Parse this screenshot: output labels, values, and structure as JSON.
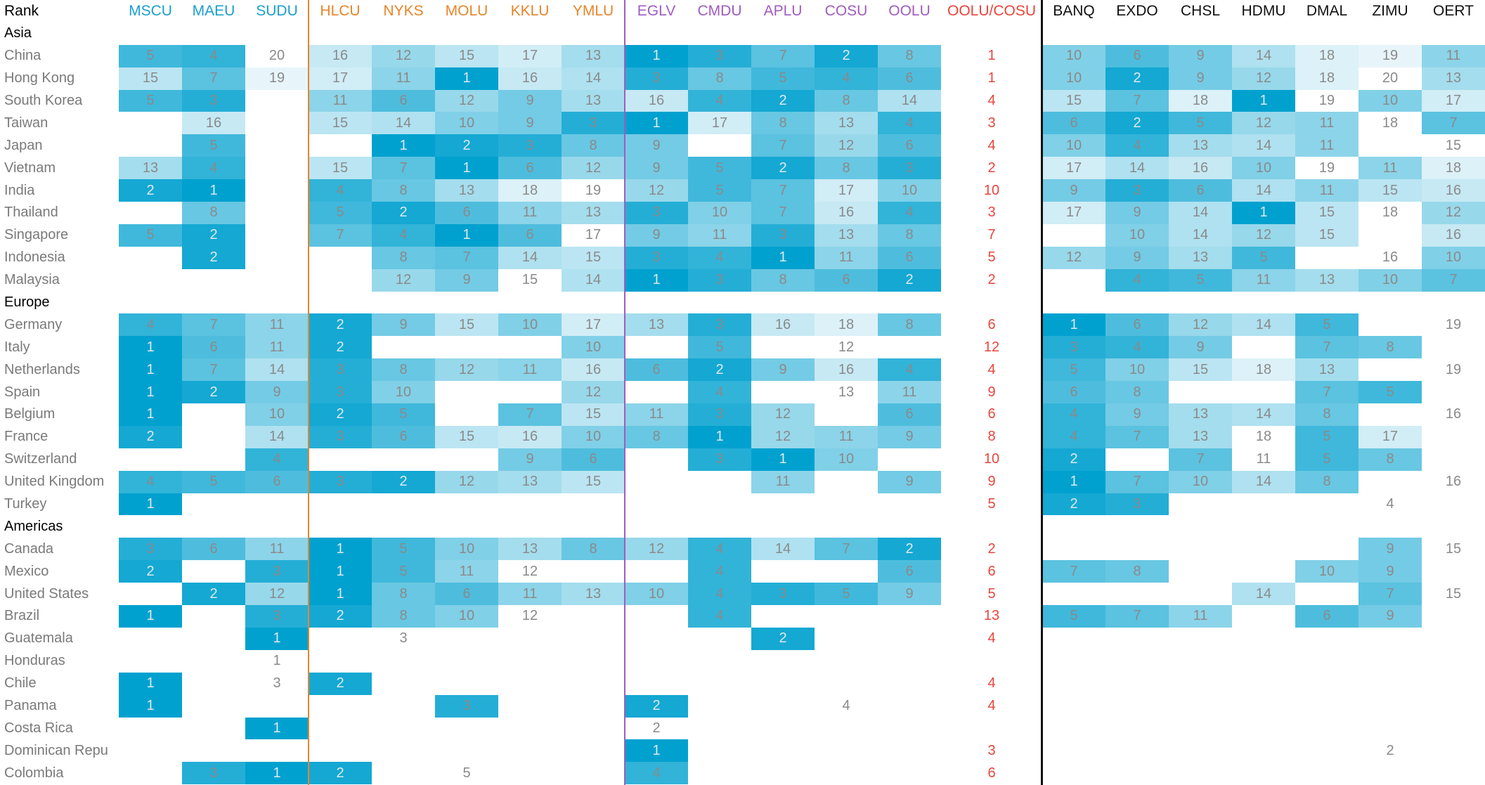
{
  "colors": {
    "blue": "#1a9fd0",
    "orange": "#e8852a",
    "purple": "#a05cc0",
    "red": "#e8453c",
    "black": "#111111",
    "heat_high": "#00a1cf",
    "heat_low": "#f2f9fc"
  },
  "chart_data": {
    "type": "heatmap",
    "title": "",
    "corner_label": "Rank",
    "columns": [
      {
        "code": "MSCU",
        "group": "blue"
      },
      {
        "code": "MAEU",
        "group": "blue"
      },
      {
        "code": "SUDU",
        "group": "blue"
      },
      {
        "code": "HLCU",
        "group": "orange"
      },
      {
        "code": "NYKS",
        "group": "orange"
      },
      {
        "code": "MOLU",
        "group": "orange"
      },
      {
        "code": "KKLU",
        "group": "orange"
      },
      {
        "code": "YMLU",
        "group": "orange"
      },
      {
        "code": "EGLV",
        "group": "purple"
      },
      {
        "code": "CMDU",
        "group": "purple"
      },
      {
        "code": "APLU",
        "group": "purple"
      },
      {
        "code": "COSU",
        "group": "purple"
      },
      {
        "code": "OOLU",
        "group": "purple"
      },
      {
        "code": "OOLU/COSU",
        "group": "red"
      },
      {
        "code": "BANQ",
        "group": "black"
      },
      {
        "code": "EXDO",
        "group": "black"
      },
      {
        "code": "CHSL",
        "group": "black"
      },
      {
        "code": "HDMU",
        "group": "black"
      },
      {
        "code": "DMAL",
        "group": "black"
      },
      {
        "code": "ZIMU",
        "group": "black"
      },
      {
        "code": "OERT",
        "group": "black"
      }
    ],
    "sections": [
      {
        "name": "Asia",
        "rows": [
          {
            "label": "China",
            "values": [
              5,
              4,
              "20",
              16,
              12,
              15,
              17,
              13,
              1,
              3,
              7,
              2,
              8,
              1,
              10,
              6,
              9,
              14,
              18,
              19,
              11
            ]
          },
          {
            "label": "Hong Kong",
            "values": [
              15,
              7,
              19,
              17,
              11,
              1,
              16,
              14,
              3,
              8,
              5,
              4,
              6,
              1,
              10,
              2,
              9,
              12,
              18,
              "20",
              13
            ]
          },
          {
            "label": "South Korea",
            "values": [
              5,
              3,
              null,
              11,
              6,
              12,
              9,
              13,
              16,
              4,
              2,
              8,
              14,
              4,
              15,
              7,
              18,
              1,
              "19",
              10,
              17
            ]
          },
          {
            "label": "Taiwan",
            "values": [
              null,
              16,
              null,
              15,
              14,
              10,
              9,
              3,
              1,
              17,
              8,
              13,
              4,
              3,
              6,
              2,
              5,
              12,
              11,
              "18",
              7
            ]
          },
          {
            "label": "Japan",
            "values": [
              null,
              5,
              null,
              null,
              1,
              2,
              3,
              8,
              9,
              null,
              7,
              12,
              6,
              4,
              10,
              4,
              13,
              14,
              11,
              null,
              "15"
            ]
          },
          {
            "label": "Vietnam",
            "values": [
              13,
              4,
              null,
              15,
              7,
              1,
              6,
              12,
              9,
              5,
              2,
              8,
              3,
              2,
              17,
              14,
              16,
              10,
              "19",
              11,
              18
            ]
          },
          {
            "label": "India",
            "values": [
              2,
              1,
              null,
              4,
              8,
              13,
              18,
              "19",
              12,
              5,
              7,
              17,
              10,
              10,
              9,
              3,
              6,
              14,
              11,
              15,
              16
            ]
          },
          {
            "label": "Thailand",
            "values": [
              null,
              8,
              null,
              5,
              2,
              6,
              11,
              13,
              3,
              10,
              7,
              16,
              4,
              3,
              17,
              9,
              14,
              1,
              15,
              "18",
              12
            ]
          },
          {
            "label": "Singapore",
            "values": [
              5,
              2,
              null,
              7,
              4,
              1,
              6,
              "17",
              9,
              11,
              3,
              13,
              8,
              7,
              null,
              10,
              14,
              12,
              15,
              null,
              16
            ]
          },
          {
            "label": "Indonesia",
            "values": [
              null,
              2,
              null,
              null,
              8,
              7,
              14,
              15,
              3,
              4,
              1,
              11,
              6,
              5,
              12,
              9,
              13,
              5,
              null,
              "16",
              10
            ]
          },
          {
            "label": "Malaysia",
            "values": [
              null,
              null,
              null,
              null,
              12,
              9,
              "15",
              14,
              1,
              3,
              8,
              6,
              2,
              2,
              null,
              4,
              5,
              11,
              13,
              10,
              7
            ]
          }
        ]
      },
      {
        "name": "Europe",
        "rows": [
          {
            "label": "Germany",
            "values": [
              4,
              7,
              11,
              2,
              9,
              15,
              10,
              17,
              13,
              3,
              16,
              18,
              8,
              6,
              1,
              6,
              12,
              14,
              5,
              null,
              "19"
            ]
          },
          {
            "label": "Italy",
            "values": [
              1,
              6,
              11,
              2,
              null,
              null,
              null,
              10,
              null,
              5,
              null,
              "12",
              null,
              12,
              3,
              4,
              9,
              null,
              7,
              8,
              null
            ]
          },
          {
            "label": "Netherlands",
            "values": [
              1,
              7,
              14,
              3,
              8,
              12,
              11,
              16,
              6,
              2,
              9,
              16,
              4,
              4,
              5,
              10,
              15,
              18,
              13,
              null,
              "19"
            ]
          },
          {
            "label": "Spain",
            "values": [
              1,
              2,
              9,
              3,
              10,
              null,
              null,
              12,
              null,
              4,
              null,
              "13",
              11,
              9,
              6,
              8,
              null,
              null,
              7,
              5,
              null
            ]
          },
          {
            "label": "Belgium",
            "values": [
              1,
              null,
              10,
              2,
              5,
              null,
              7,
              15,
              11,
              3,
              12,
              null,
              6,
              6,
              4,
              9,
              13,
              14,
              8,
              null,
              "16"
            ]
          },
          {
            "label": "France",
            "values": [
              2,
              null,
              14,
              3,
              6,
              15,
              16,
              10,
              8,
              1,
              12,
              11,
              9,
              8,
              4,
              7,
              13,
              "18",
              5,
              17,
              null
            ]
          },
          {
            "label": "Switzerland",
            "values": [
              null,
              null,
              4,
              null,
              null,
              null,
              9,
              6,
              null,
              3,
              1,
              10,
              null,
              10,
              2,
              null,
              7,
              "11",
              5,
              8,
              null
            ]
          },
          {
            "label": "United Kingdom",
            "values": [
              4,
              5,
              6,
              3,
              2,
              12,
              13,
              15,
              null,
              null,
              11,
              null,
              9,
              9,
              1,
              7,
              10,
              14,
              8,
              null,
              "16"
            ]
          },
          {
            "label": "Turkey",
            "values": [
              1,
              null,
              null,
              null,
              null,
              null,
              null,
              null,
              null,
              null,
              null,
              null,
              null,
              5,
              2,
              3,
              null,
              null,
              null,
              "4",
              null
            ]
          }
        ]
      },
      {
        "name": "Americas",
        "rows": [
          {
            "label": "Canada",
            "values": [
              3,
              6,
              11,
              1,
              5,
              10,
              13,
              8,
              12,
              4,
              14,
              7,
              2,
              2,
              null,
              null,
              null,
              null,
              null,
              9,
              "15"
            ]
          },
          {
            "label": "Mexico",
            "values": [
              2,
              null,
              3,
              1,
              5,
              11,
              "12",
              null,
              null,
              4,
              null,
              null,
              6,
              6,
              7,
              8,
              null,
              null,
              10,
              9,
              null
            ]
          },
          {
            "label": "United States",
            "values": [
              null,
              2,
              12,
              1,
              8,
              6,
              11,
              13,
              10,
              4,
              3,
              5,
              9,
              5,
              null,
              null,
              null,
              14,
              null,
              7,
              "15"
            ]
          },
          {
            "label": "Brazil",
            "values": [
              1,
              null,
              3,
              2,
              8,
              10,
              "12",
              null,
              null,
              4,
              null,
              null,
              null,
              13,
              5,
              7,
              11,
              null,
              6,
              9,
              null
            ]
          },
          {
            "label": "Guatemala",
            "values": [
              null,
              null,
              1,
              null,
              "3",
              null,
              null,
              null,
              null,
              null,
              2,
              null,
              null,
              4,
              null,
              null,
              null,
              null,
              null,
              null,
              null
            ]
          },
          {
            "label": "Honduras",
            "values": [
              null,
              null,
              "1",
              null,
              null,
              null,
              null,
              null,
              null,
              null,
              null,
              null,
              null,
              null,
              null,
              null,
              null,
              null,
              null,
              null,
              null
            ]
          },
          {
            "label": "Chile",
            "values": [
              1,
              null,
              "3",
              2,
              null,
              null,
              null,
              null,
              null,
              null,
              null,
              null,
              null,
              4,
              null,
              null,
              null,
              null,
              null,
              null,
              null
            ]
          },
          {
            "label": "Panama",
            "values": [
              1,
              null,
              null,
              null,
              null,
              3,
              null,
              null,
              2,
              null,
              null,
              "4",
              null,
              4,
              null,
              null,
              null,
              null,
              null,
              null,
              null
            ]
          },
          {
            "label": "Costa Rica",
            "values": [
              null,
              null,
              1,
              null,
              null,
              null,
              null,
              null,
              "2",
              null,
              null,
              null,
              null,
              null,
              null,
              null,
              null,
              null,
              null,
              null,
              null
            ]
          },
          {
            "label": "Dominican Repu",
            "values": [
              null,
              null,
              null,
              null,
              null,
              null,
              null,
              null,
              1,
              null,
              null,
              null,
              null,
              3,
              null,
              null,
              null,
              null,
              null,
              "2",
              null
            ]
          },
          {
            "label": "Colombia",
            "values": [
              null,
              3,
              1,
              2,
              null,
              "5",
              null,
              null,
              4,
              null,
              null,
              null,
              null,
              6,
              null,
              null,
              null,
              null,
              null,
              null,
              null
            ]
          }
        ]
      }
    ]
  }
}
